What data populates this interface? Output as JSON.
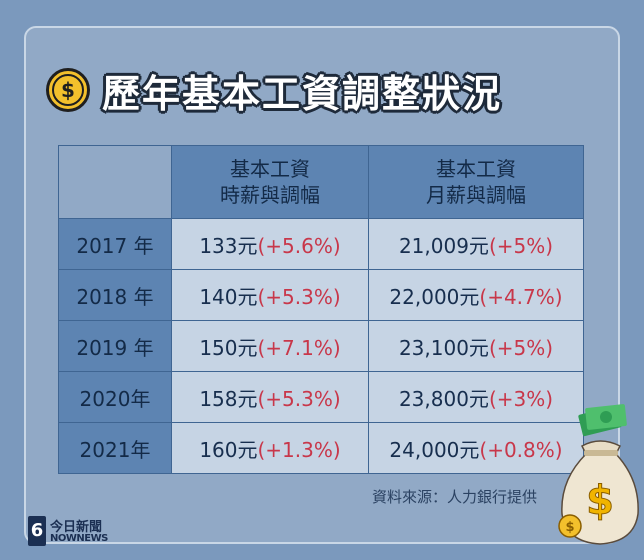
{
  "title": "歷年基本工資調整狀況",
  "coin_symbol": "$",
  "table": {
    "header_hourly": [
      "基本工資",
      "時薪與調幅"
    ],
    "header_monthly": [
      "基本工資",
      "月薪與調幅"
    ],
    "rows": [
      {
        "year": "2017 年",
        "hourly": "133元",
        "hourly_pct": "(+5.6%)",
        "monthly": "21,009元",
        "monthly_pct": "(+5%)"
      },
      {
        "year": "2018 年",
        "hourly": "140元",
        "hourly_pct": "(+5.3%)",
        "monthly": "22,000元",
        "monthly_pct": "(+4.7%)"
      },
      {
        "year": "2019 年",
        "hourly": "150元",
        "hourly_pct": "(+7.1%)",
        "monthly": "23,100元",
        "monthly_pct": "(+5%)"
      },
      {
        "year": "2020年",
        "hourly": "158元",
        "hourly_pct": "(+5.3%)",
        "monthly": "23,800元",
        "monthly_pct": "(+3%)"
      },
      {
        "year": "2021年",
        "hourly": "160元",
        "hourly_pct": "(+1.3%)",
        "monthly": "24,000元",
        "monthly_pct": "(+0.8%)"
      }
    ]
  },
  "source": "資料來源：人力銀行提供",
  "logo": {
    "number": "6",
    "cn": "今日新聞",
    "en": "NOWNEWS"
  },
  "icons": [
    "dollar-coin-icon",
    "money-bag-icon",
    "logo-icon"
  ],
  "colors": {
    "background": "#7b99bd",
    "header_cell": "#5d84b2",
    "body_cell": "#c6d4e4",
    "percent_text": "#c8374a",
    "coin": "#f3c02c"
  }
}
